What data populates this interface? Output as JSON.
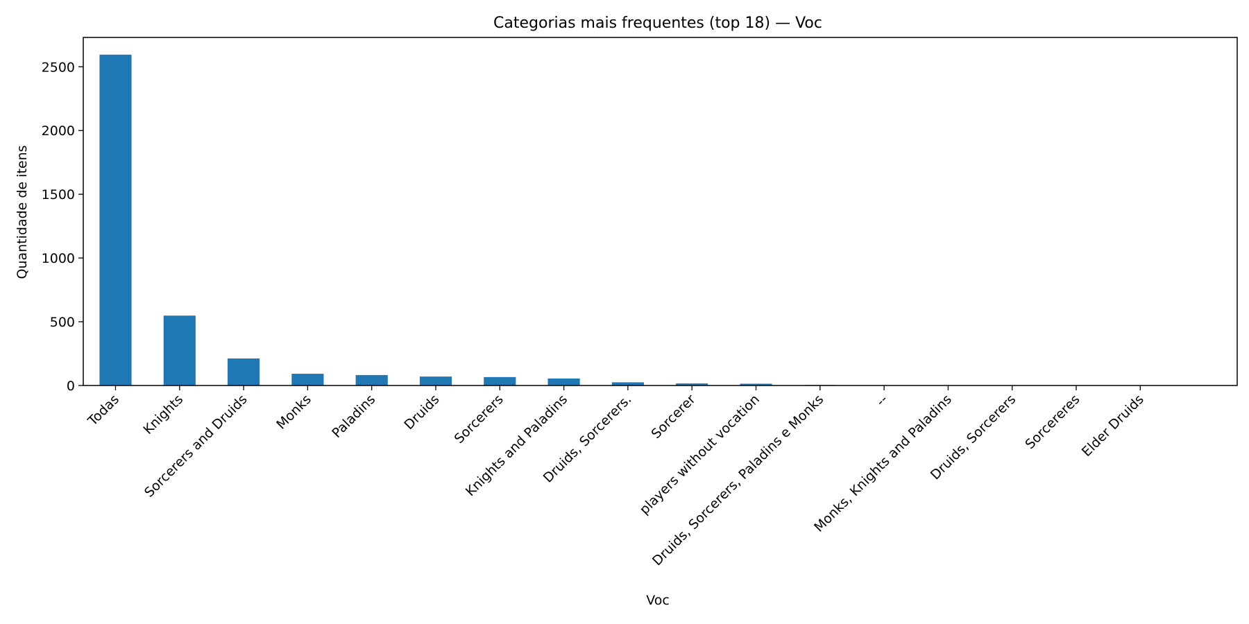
{
  "chart_data": {
    "type": "bar",
    "title": "Categorias mais frequentes (top 18) — Voc",
    "xlabel": "Voc",
    "ylabel": "Quantidade de itens",
    "ylim": [
      0,
      2730
    ],
    "yticks": [
      0,
      500,
      1000,
      1500,
      2000,
      2500
    ],
    "grid": false,
    "legend": "none",
    "bar_color": "#1f77b4",
    "categories": [
      "Todas",
      "Knights",
      "Sorcerers and Druids",
      "Monks",
      "Paladins",
      "Druids",
      "Sorcerers",
      "Knights and Paladins",
      "Druids, Sorcerers.",
      "Sorcerer",
      "players without vocation",
      "Druids, Sorcerers, Paladins e Monks",
      "--",
      "Monks, Knights and Paladins",
      "Druids, Sorcerers",
      "Sorcereres",
      "Elder Druids"
    ],
    "values": [
      2595,
      548,
      212,
      92,
      82,
      70,
      66,
      55,
      25,
      16,
      14,
      4,
      3,
      2,
      1,
      1,
      1
    ]
  }
}
